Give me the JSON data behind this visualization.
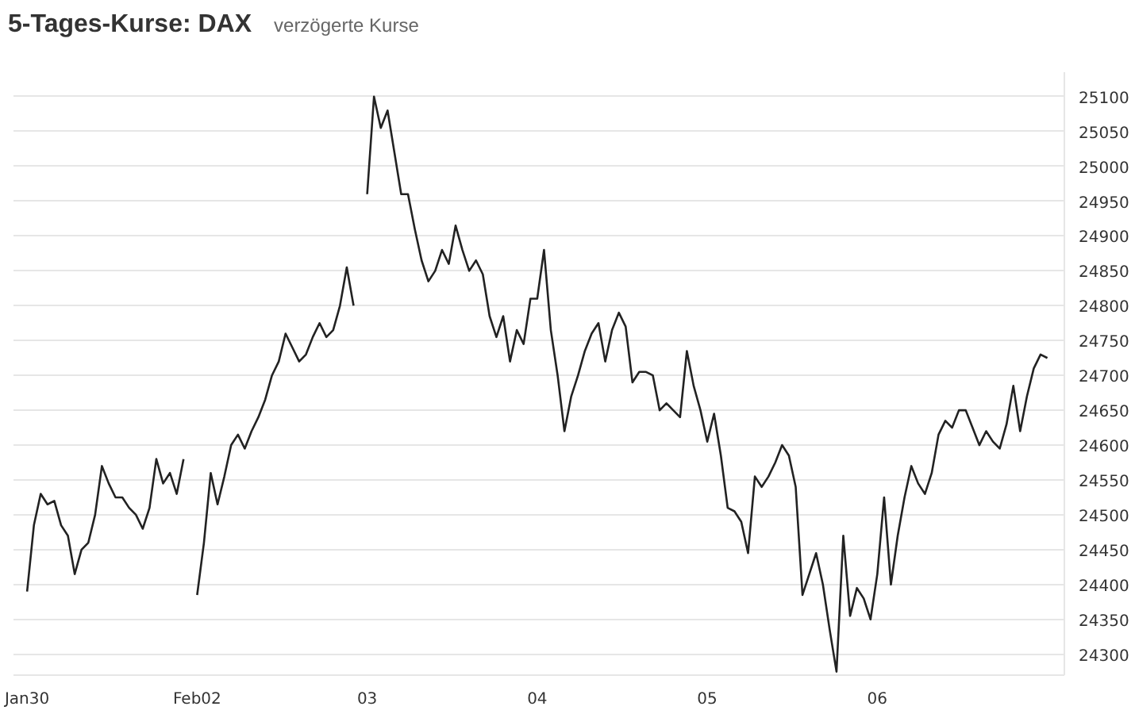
{
  "chart_data": {
    "type": "line",
    "title": "5-Tages-Kurse: DAX",
    "subtitle": "verzögerte Kurse",
    "categories": [
      "Jan30",
      null,
      null,
      null,
      null,
      null,
      null,
      null,
      null,
      null,
      null,
      null,
      null,
      null,
      null,
      null,
      null,
      null,
      null,
      null,
      null,
      null,
      null,
      null,
      null,
      "Feb02",
      null,
      null,
      null,
      null,
      null,
      null,
      null,
      null,
      null,
      null,
      null,
      null,
      null,
      null,
      null,
      null,
      null,
      null,
      null,
      null,
      null,
      null,
      null,
      null,
      "03",
      null,
      null,
      null,
      null,
      null,
      null,
      null,
      null,
      null,
      null,
      null,
      null,
      null,
      null,
      null,
      null,
      null,
      null,
      null,
      null,
      null,
      null,
      null,
      null,
      "04",
      null,
      null,
      null,
      null,
      null,
      null,
      null,
      null,
      null,
      null,
      null,
      null,
      null,
      null,
      null,
      null,
      null,
      null,
      null,
      null,
      null,
      null,
      null,
      null,
      "05",
      null,
      null,
      null,
      null,
      null,
      null,
      null,
      null,
      null,
      null,
      null,
      null,
      null,
      null,
      null,
      null,
      null,
      null,
      null,
      null,
      null,
      null,
      null,
      null,
      "06",
      null,
      null,
      null,
      null,
      null,
      null,
      null,
      null,
      null,
      null,
      null,
      null,
      null,
      null,
      null,
      null,
      null,
      null,
      null,
      null,
      null,
      null,
      null,
      null,
      null
    ],
    "series": [
      {
        "color": "#222222",
        "values": [
          24390,
          24485,
          24530,
          24515,
          24520,
          24485,
          24470,
          24415,
          24450,
          24460,
          24500,
          24570,
          24545,
          24525,
          24525,
          24510,
          24500,
          24480,
          24510,
          24580,
          24545,
          24560,
          24530,
          24580,
          null,
          24385,
          24460,
          24560,
          24515,
          24555,
          24600,
          24615,
          24595,
          24620,
          24640,
          24665,
          24700,
          24720,
          24760,
          24740,
          24720,
          24730,
          24755,
          24775,
          24755,
          24765,
          24800,
          24855,
          24800,
          null,
          24960,
          25100,
          25055,
          25080,
          25020,
          24960,
          24960,
          24910,
          24865,
          24835,
          24850,
          24880,
          24860,
          24915,
          24880,
          24850,
          24865,
          24845,
          24785,
          24755,
          24785,
          24720,
          24765,
          24745,
          24810,
          24810,
          24880,
          24765,
          24700,
          24620,
          24670,
          24700,
          24735,
          24760,
          24775,
          24720,
          24765,
          24790,
          24770,
          24690,
          24705,
          24705,
          24700,
          24650,
          24660,
          24650,
          24640,
          24735,
          24685,
          24650,
          24605,
          24645,
          24585,
          24510,
          24505,
          24490,
          24445,
          24555,
          24540,
          24555,
          24575,
          24600,
          24585,
          24540,
          24385,
          24415,
          24445,
          24400,
          24335,
          24275,
          24470,
          24355,
          24395,
          24380,
          24350,
          24415,
          24525,
          24400,
          24470,
          24525,
          24570,
          24545,
          24530,
          24560,
          24615,
          24635,
          24625,
          24650,
          24650,
          24625,
          24600,
          24620,
          24605,
          24595,
          24630,
          24685,
          24620,
          24670,
          24710,
          24730,
          24725
        ]
      }
    ],
    "ylim": [
      24270,
      25135
    ],
    "yticks": [
      24300,
      24350,
      24400,
      24450,
      24500,
      24550,
      24600,
      24650,
      24700,
      24750,
      24800,
      24850,
      24900,
      24950,
      25000,
      25050,
      25100
    ],
    "grid": "y"
  }
}
